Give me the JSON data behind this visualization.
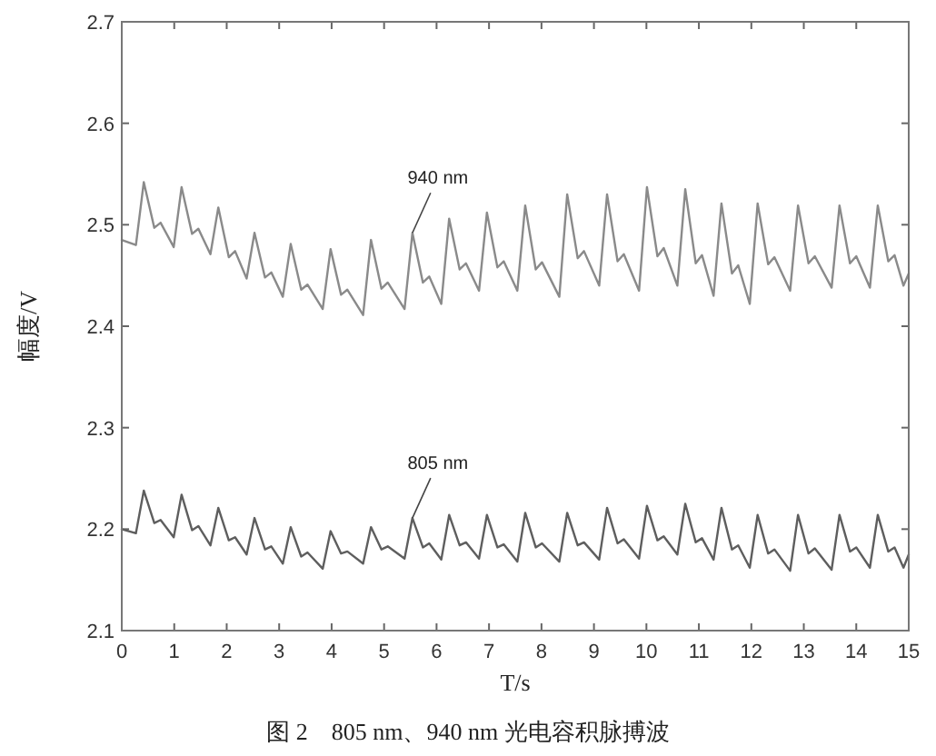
{
  "chart_data": {
    "type": "line",
    "xlabel": "T/s",
    "ylabel": "幅度/V",
    "xlim": [
      0,
      15
    ],
    "ylim": [
      2.1,
      2.7
    ],
    "xticks": [
      0,
      1,
      2,
      3,
      4,
      5,
      6,
      7,
      8,
      9,
      10,
      11,
      12,
      13,
      14,
      15
    ],
    "yticks": [
      2.1,
      2.2,
      2.3,
      2.4,
      2.5,
      2.6,
      2.7
    ],
    "x": [
      0,
      0.27,
      0.42,
      0.62,
      0.74,
      0.99,
      1.14,
      1.34,
      1.46,
      1.69,
      1.84,
      2.04,
      2.16,
      2.38,
      2.53,
      2.73,
      2.85,
      3.07,
      3.22,
      3.42,
      3.54,
      3.83,
      3.98,
      4.18,
      4.3,
      4.6,
      4.75,
      4.95,
      5.07,
      5.39,
      5.54,
      5.74,
      5.86,
      6.09,
      6.24,
      6.44,
      6.56,
      6.81,
      6.96,
      7.16,
      7.28,
      7.54,
      7.69,
      7.89,
      8.01,
      8.34,
      8.49,
      8.69,
      8.81,
      9.1,
      9.25,
      9.45,
      9.57,
      9.86,
      10.01,
      10.21,
      10.33,
      10.59,
      10.74,
      10.94,
      11.06,
      11.28,
      11.43,
      11.63,
      11.75,
      11.97,
      12.12,
      12.32,
      12.44,
      12.74,
      12.89,
      13.09,
      13.21,
      13.53,
      13.68,
      13.88,
      14.0,
      14.26,
      14.41,
      14.61,
      14.73,
      14.9,
      15
    ],
    "series": [
      {
        "color": "#8a8a8a",
        "values": [
          2.485,
          2.48,
          2.542,
          2.497,
          2.502,
          2.478,
          2.537,
          2.491,
          2.496,
          2.471,
          2.517,
          2.468,
          2.474,
          2.447,
          2.492,
          2.448,
          2.453,
          2.429,
          2.481,
          2.436,
          2.441,
          2.417,
          2.476,
          2.431,
          2.436,
          2.411,
          2.485,
          2.437,
          2.443,
          2.417,
          2.492,
          2.443,
          2.449,
          2.422,
          2.506,
          2.456,
          2.462,
          2.435,
          2.512,
          2.458,
          2.464,
          2.435,
          2.519,
          2.456,
          2.463,
          2.429,
          2.53,
          2.467,
          2.474,
          2.44,
          2.53,
          2.464,
          2.471,
          2.435,
          2.537,
          2.469,
          2.477,
          2.44,
          2.535,
          2.462,
          2.47,
          2.43,
          2.521,
          2.452,
          2.46,
          2.422,
          2.521,
          2.461,
          2.468,
          2.435,
          2.519,
          2.462,
          2.469,
          2.438,
          2.519,
          2.462,
          2.469,
          2.438,
          2.519,
          2.464,
          2.47,
          2.44,
          2.452
        ]
      },
      {
        "color": "#5e5e5e",
        "values": [
          2.2,
          2.196,
          2.238,
          2.206,
          2.209,
          2.192,
          2.234,
          2.199,
          2.203,
          2.184,
          2.221,
          2.189,
          2.192,
          2.175,
          2.211,
          2.18,
          2.183,
          2.166,
          2.202,
          2.173,
          2.177,
          2.161,
          2.198,
          2.176,
          2.178,
          2.166,
          2.202,
          2.18,
          2.183,
          2.171,
          2.211,
          2.182,
          2.186,
          2.17,
          2.214,
          2.184,
          2.187,
          2.171,
          2.214,
          2.182,
          2.185,
          2.168,
          2.216,
          2.182,
          2.186,
          2.168,
          2.216,
          2.184,
          2.187,
          2.17,
          2.221,
          2.186,
          2.19,
          2.171,
          2.223,
          2.189,
          2.193,
          2.175,
          2.225,
          2.187,
          2.191,
          2.17,
          2.221,
          2.18,
          2.184,
          2.162,
          2.214,
          2.176,
          2.18,
          2.159,
          2.214,
          2.176,
          2.181,
          2.16,
          2.214,
          2.178,
          2.182,
          2.162,
          2.214,
          2.178,
          2.182,
          2.162,
          2.175
        ]
      }
    ],
    "annotations": [
      {
        "text": "940 nm",
        "x": 5.54,
        "y": 2.492
      },
      {
        "text": "805 nm",
        "x": 5.54,
        "y": 2.211
      },
      "图 2　805 nm、940 nm 光电容积脉搏波"
    ]
  }
}
